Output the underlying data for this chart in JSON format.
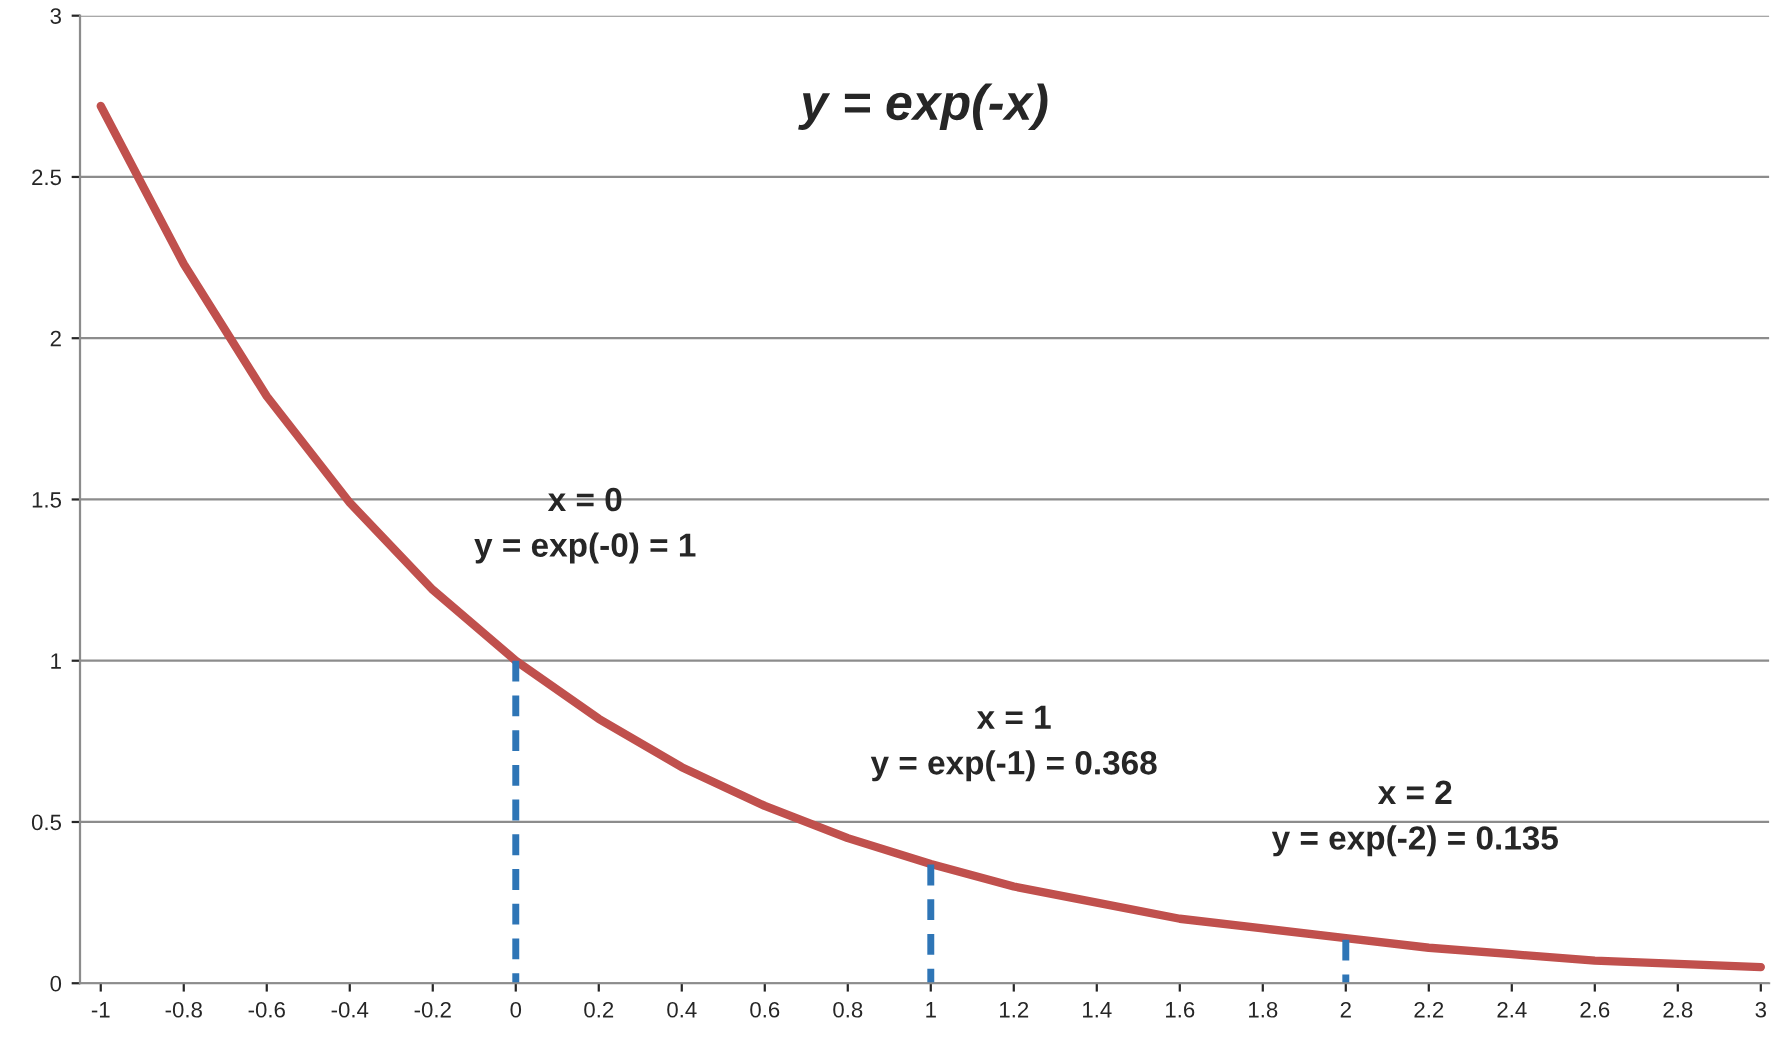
{
  "chart_data": {
    "type": "line",
    "title": "y = exp(-x)",
    "series": [
      {
        "color": "#c0504d",
        "x": [
          -1,
          -0.8,
          -0.6,
          -0.4,
          -0.2,
          0,
          0.2,
          0.4,
          0.6,
          0.8,
          1,
          1.2,
          1.4,
          1.6,
          1.8,
          2,
          2.2,
          2.4,
          2.6,
          2.8,
          3
        ],
        "values": [
          2.72,
          2.23,
          1.82,
          1.49,
          1.22,
          1.0,
          0.82,
          0.67,
          0.55,
          0.45,
          0.37,
          0.3,
          0.25,
          0.2,
          0.17,
          0.14,
          0.11,
          0.09,
          0.07,
          0.06,
          0.05
        ]
      },
      {
        "color": "#2e75b6",
        "line_style": "dashed",
        "x": [
          0,
          0
        ],
        "values": [
          1.0,
          0
        ]
      },
      {
        "color": "#2e75b6",
        "line_style": "dashed",
        "x": [
          1,
          1
        ],
        "values": [
          0.368,
          0
        ]
      },
      {
        "color": "#2e75b6",
        "line_style": "dashed",
        "x": [
          2,
          2
        ],
        "values": [
          0.135,
          0
        ]
      }
    ],
    "annotations": [
      {
        "text": "x = 0\ny = exp(-0) = 1",
        "x": 0,
        "y": 1.0
      },
      {
        "text": "x = 1\ny = exp(-1) = 0.368",
        "x": 1,
        "y": 0.368
      },
      {
        "text": "x = 2\ny = exp(-2) = 0.135",
        "x": 2,
        "y": 0.135
      }
    ],
    "xlim": [
      -1.05,
      3.02
    ],
    "xticks": [
      -1,
      -0.8,
      -0.6,
      -0.4,
      -0.2,
      0,
      0.2,
      0.4,
      0.6,
      0.8,
      1,
      1.2,
      1.4,
      1.6,
      1.8,
      2,
      2.2,
      2.4,
      2.6,
      2.8,
      3
    ],
    "ylim": [
      0,
      3
    ],
    "yticks": [
      0,
      0.5,
      1,
      1.5,
      2,
      2.5,
      3
    ],
    "grid": "y",
    "marker": "none",
    "line_style": "solid"
  }
}
